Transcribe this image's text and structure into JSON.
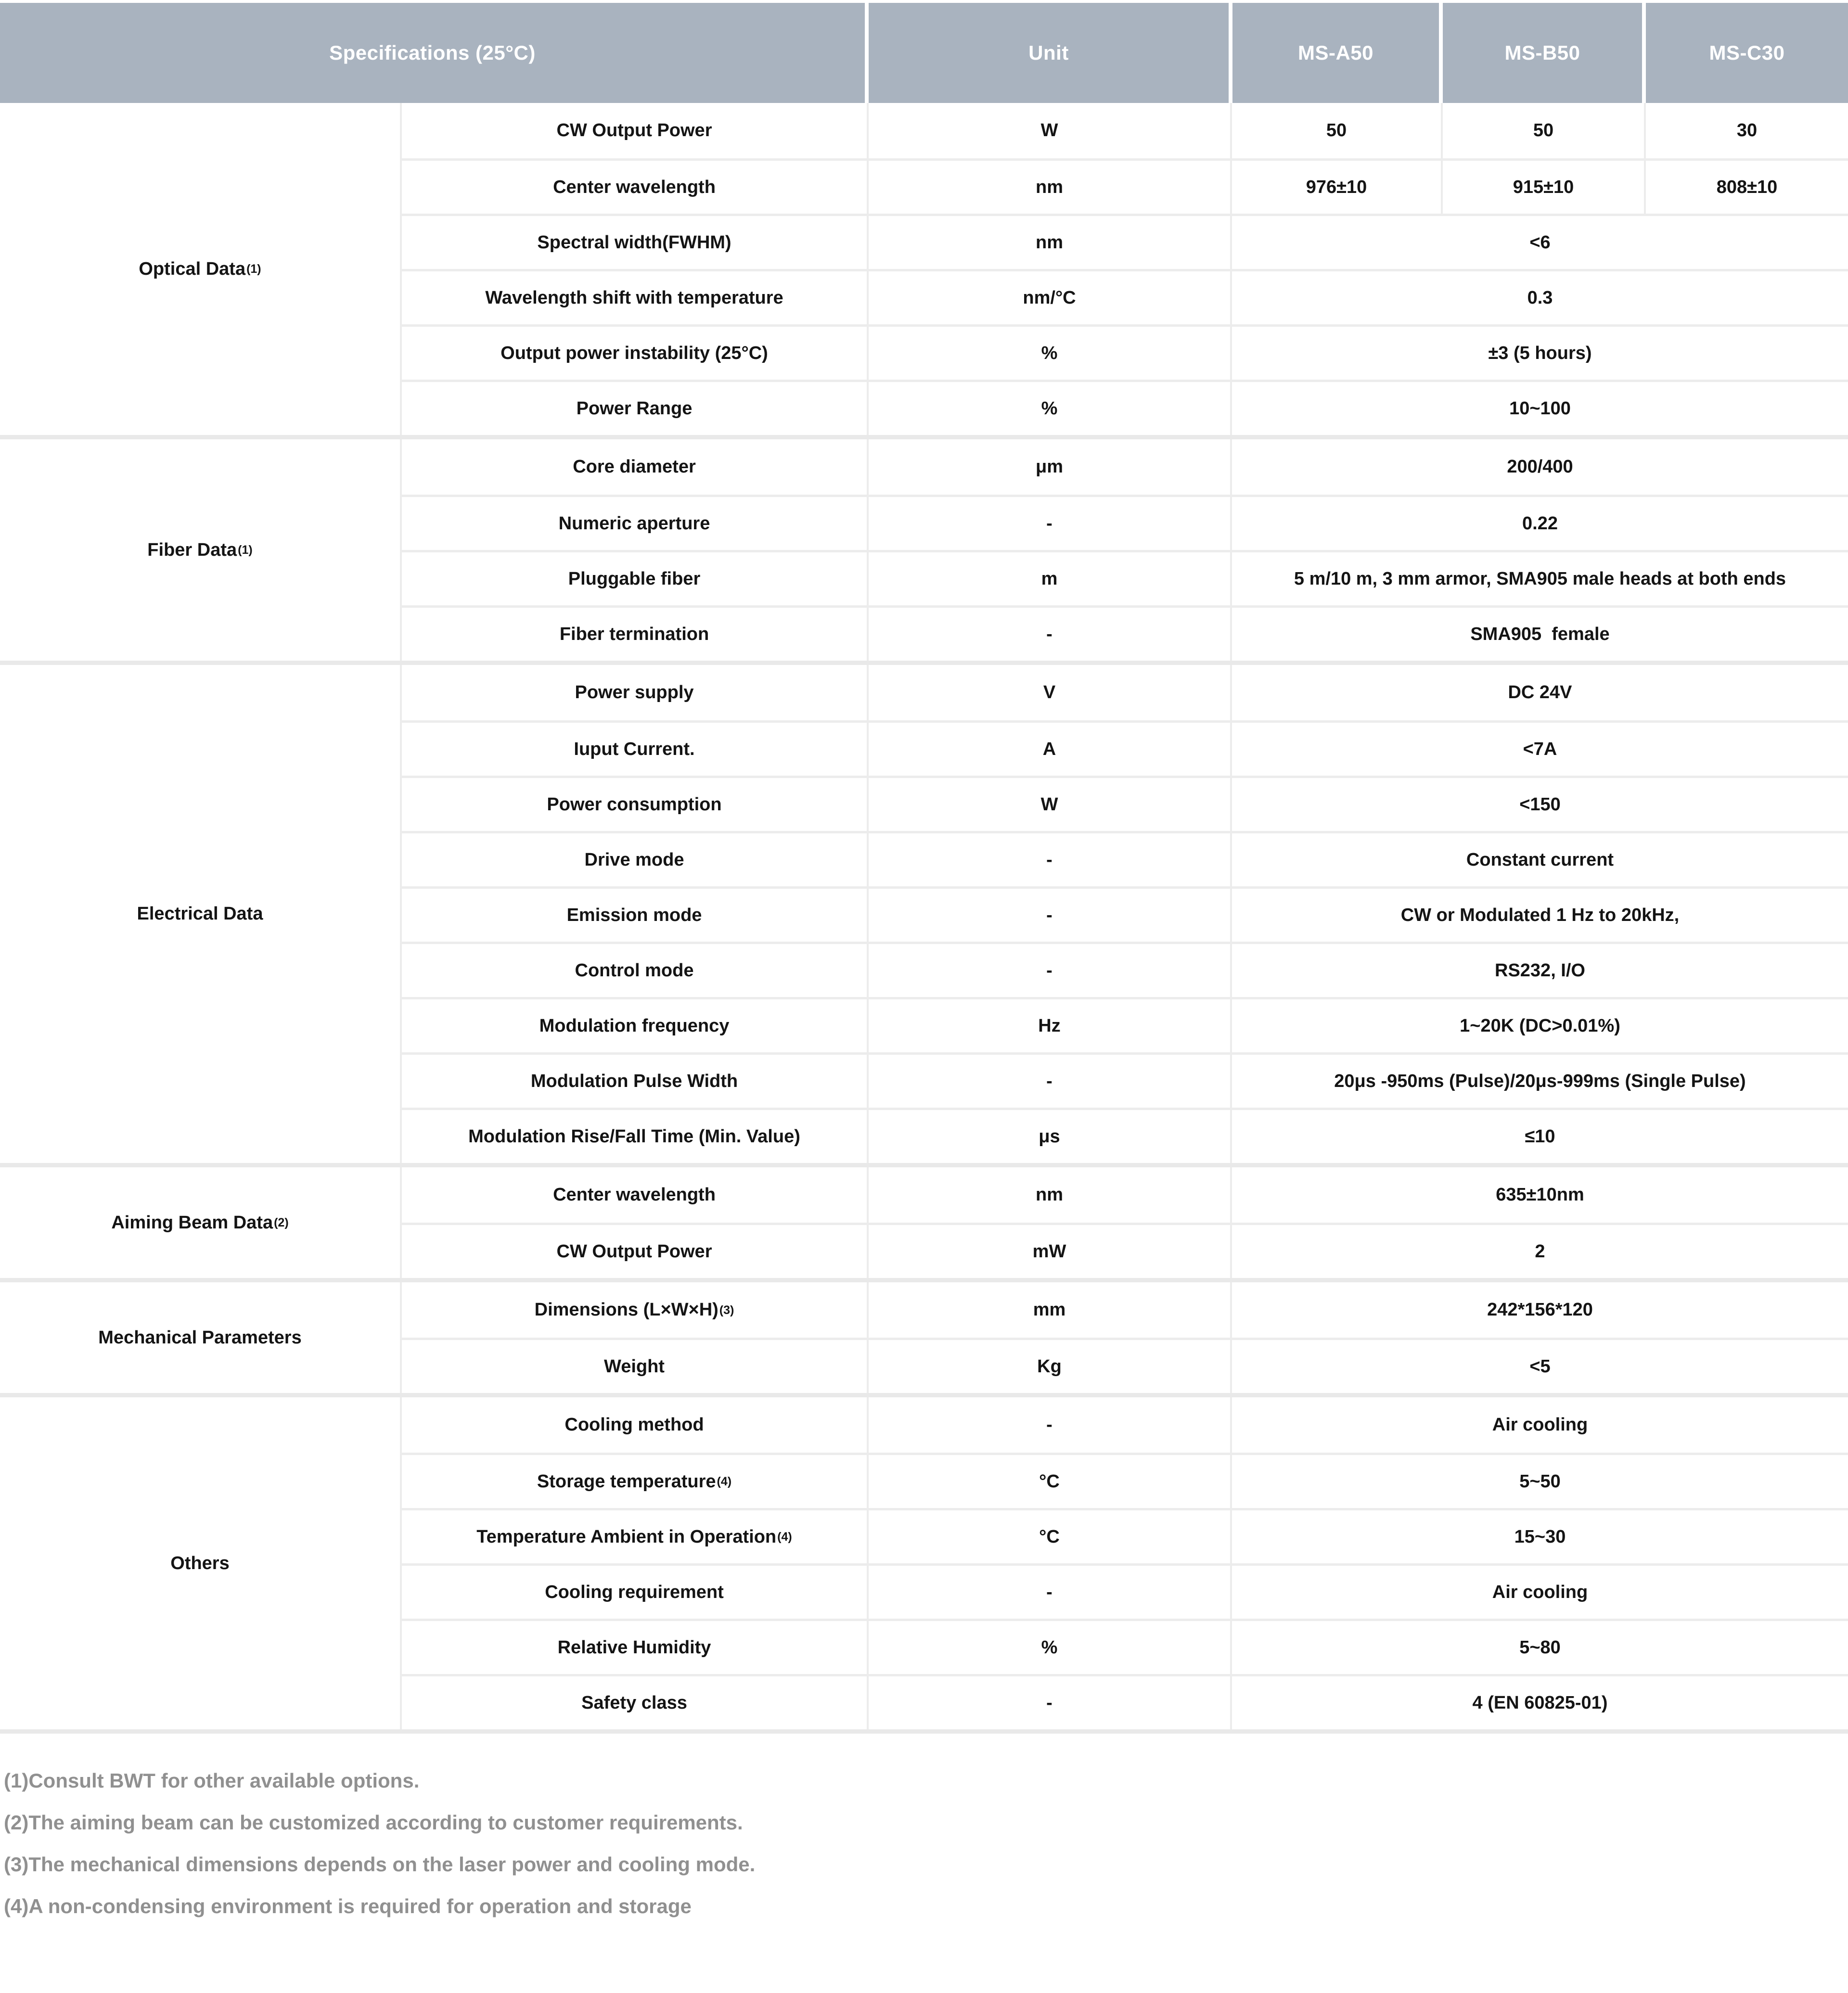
{
  "header": {
    "specifications": "Specifications (25°C)",
    "unit": "Unit",
    "models": [
      "MS-A50",
      "MS-B50",
      "MS-C30"
    ]
  },
  "table": {
    "sections": [
      {
        "category": "Optical Data",
        "category_sup": "(1)",
        "rows": [
          {
            "param": "CW Output Power",
            "unit": "W",
            "values": [
              "50",
              "50",
              "30"
            ]
          },
          {
            "param": "Center wavelength",
            "unit": "nm",
            "values": [
              "976±10",
              "915±10",
              "808±10"
            ]
          },
          {
            "param": "Spectral width(FWHM)",
            "unit": "nm",
            "value": "<6"
          },
          {
            "param": "Wavelength shift with temperature",
            "unit": "nm/°C",
            "value": "0.3"
          },
          {
            "param": "Output power instability (25°C)",
            "unit": "%",
            "value": "±3 (5 hours)"
          },
          {
            "param": "Power Range",
            "unit": "%",
            "value": "10~100"
          }
        ]
      },
      {
        "category": "Fiber Data",
        "category_sup": "(1)",
        "rows": [
          {
            "param": "Core diameter",
            "unit": "μm",
            "value": "200/400"
          },
          {
            "param": "Numeric aperture",
            "unit": "-",
            "value": "0.22"
          },
          {
            "param": "Pluggable fiber",
            "unit": "m",
            "value": "5 m/10 m, 3 mm armor, SMA905 male heads at both ends"
          },
          {
            "param": "Fiber termination",
            "unit": "-",
            "value": "SMA905  female"
          }
        ]
      },
      {
        "category": "Electrical Data",
        "category_sup": "",
        "rows": [
          {
            "param": "Power supply",
            "unit": "V",
            "value": "DC 24V"
          },
          {
            "param": "Iuput Current.",
            "unit": "A",
            "value": "<7A"
          },
          {
            "param": "Power consumption",
            "unit": "W",
            "value": "<150"
          },
          {
            "param": "Drive mode",
            "unit": "-",
            "value": "Constant current"
          },
          {
            "param": "Emission mode",
            "unit": "-",
            "value": "CW or Modulated 1 Hz to 20kHz,"
          },
          {
            "param": "Control mode",
            "unit": "-",
            "value": "RS232, I/O"
          },
          {
            "param": "Modulation frequency",
            "unit": "Hz",
            "value": "1~20K (DC>0.01%)"
          },
          {
            "param": "Modulation Pulse Width",
            "unit": "-",
            "value": "20μs -950ms (Pulse)/20μs-999ms (Single Pulse)"
          },
          {
            "param": "Modulation Rise/Fall Time (Min. Value)",
            "unit": "μs",
            "value": "≤10"
          }
        ]
      },
      {
        "category": "Aiming Beam Data",
        "category_sup": "(2)",
        "rows": [
          {
            "param": "Center wavelength",
            "unit": "nm",
            "value": "635±10nm"
          },
          {
            "param": "CW Output Power",
            "unit": "mW",
            "value": "2"
          }
        ]
      },
      {
        "category": "Mechanical Parameters",
        "category_sup": "",
        "rows": [
          {
            "param": "Dimensions (L×W×H)",
            "param_sup": "(3)",
            "unit": "mm",
            "value": "242*156*120"
          },
          {
            "param": "Weight",
            "unit": "Kg",
            "value": "<5"
          }
        ]
      },
      {
        "category": "Others",
        "category_sup": "",
        "rows": [
          {
            "param": "Cooling method",
            "unit": "-",
            "value": "Air cooling"
          },
          {
            "param": "Storage temperature",
            "param_sup": "(4)",
            "unit": "°C",
            "value": "5~50"
          },
          {
            "param": "Temperature Ambient in Operation",
            "param_sup": "(4)",
            "unit": "°C",
            "value": "15~30"
          },
          {
            "param": "Cooling requirement",
            "unit": "-",
            "value": "Air cooling"
          },
          {
            "param": "Relative Humidity",
            "unit": "%",
            "value": "5~80"
          },
          {
            "param": "Safety class",
            "unit": "-",
            "value": "4 (EN 60825-01)"
          }
        ]
      }
    ]
  },
  "footnotes": [
    "(1)Consult BWT for other available options.",
    "(2)The aiming beam can be customized according to customer requirements.",
    "(3)The mechanical dimensions depends on the laser power and cooling mode.",
    "(4)A non-condensing environment is required for operation and storage"
  ],
  "colors": {
    "header_bg": "#a9b3bf",
    "header_text": "#ffffff",
    "body_text": "#141414",
    "gridline": "#ececec",
    "section_divider": "#e9e9e9",
    "footnote_text": "#909090"
  }
}
